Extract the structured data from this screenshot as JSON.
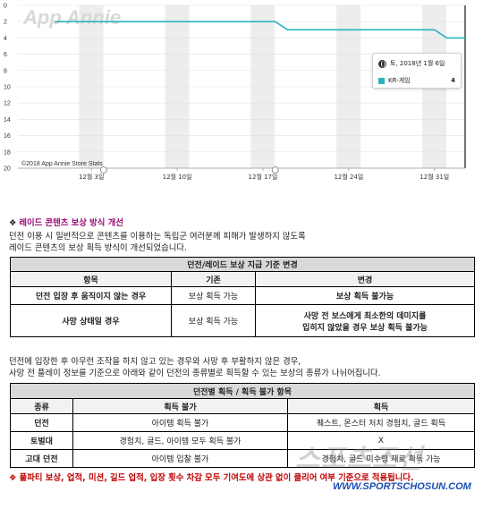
{
  "chart": {
    "watermark": "App Annie",
    "copyright": "©2018 App Annie Store Stats",
    "tooltip": {
      "date": "토, 2018년 1월 6일",
      "series_label": "KR-게임",
      "value": "4"
    },
    "colors": {
      "line": "#2bb3bd",
      "band": "#ededed",
      "grid": "#e2e2e2"
    }
  },
  "chart_data": {
    "type": "line",
    "title": "",
    "xlabel": "",
    "ylabel": "",
    "ylim": [
      20,
      0
    ],
    "y_ticks": [
      "0",
      "2",
      "4",
      "6",
      "8",
      "10",
      "12",
      "14",
      "16",
      "18",
      "20"
    ],
    "x_ticks": [
      "12월 3일",
      "12월 10일",
      "12월 17일",
      "12월 24일",
      "12월 31일"
    ],
    "grid": true,
    "series": [
      {
        "x": [
          "2017-11-30",
          "2017-12-18",
          "2017-12-19",
          "2017-12-31",
          "2018-01-01",
          "2018-01-06"
        ],
        "y": [
          2,
          2,
          3,
          3,
          4,
          4
        ]
      }
    ]
  },
  "section": {
    "title": "레이드 콘텐츠 보상 방식 개선",
    "line1": "던전 이용 시 일반적으로 콘텐츠를 이용하는 독립군 여러분께 피해가 발생하지 않도록",
    "line2": "레이드 콘텐츠의 보상 획득 방식이 개선되었습니다."
  },
  "table1": {
    "title": "던전/레이드 보상 지급 기준 변경",
    "headers": [
      "항목",
      "기존",
      "변경"
    ],
    "rows": [
      [
        "던전 입장 후 움직이지 않는 경우",
        "보상 획득 가능",
        "보상 획득 불가능"
      ],
      [
        "사망 상태일 경우",
        "보상 획득 가능",
        "사망 전 보스에게 최소한의 데미지를",
        "입히지 않았을 경우 보상 획득 불가능"
      ]
    ]
  },
  "para2": {
    "line1": "던전에 입장한 후 아무런 조작을 하지 않고 있는 경우와 사망 후 부활하지 않은 경우,",
    "line2": "사망 전 플레이 정보를 기준으로 아래와 같이 던전의 종류별로 획득할 수 있는 보상의 종류가 나뉘어집니다."
  },
  "table2": {
    "title": "던전별 획득 / 획득 불가 항목",
    "headers": [
      "종류",
      "획득 불가",
      "획득"
    ],
    "rows": [
      [
        "던전",
        "아이템 획득 불가",
        "퀘스트, 몬스터 처치 경험치, 골드 획득"
      ],
      [
        "토벌대",
        "경험치, 골드, 아이템 모두 획득 불가",
        "X"
      ],
      [
        "고대 던전",
        "아이템 입찰 불가",
        "경험치, 골드 미수령 재료 획득 가능"
      ]
    ]
  },
  "footnote": "풀파티 보상, 업적, 미션, 길드 업적, 입장 횟수 차감 모두 기여도에 상관 없이 클리어 여부 기준으로 적용됩니다.",
  "watermarks": {
    "brand": "스포츠조선",
    "url": "WWW.SPORTSCHOSUN.COM"
  }
}
